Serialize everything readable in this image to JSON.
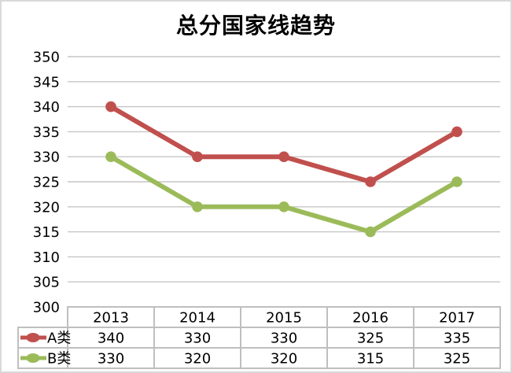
{
  "chart_data": {
    "type": "line",
    "title": "总分国家线趋势",
    "categories": [
      "2013",
      "2014",
      "2015",
      "2016",
      "2017"
    ],
    "series": [
      {
        "name": "A类",
        "values": [
          340,
          330,
          330,
          325,
          335
        ],
        "color": "#C0504D"
      },
      {
        "name": "B类",
        "values": [
          330,
          320,
          320,
          315,
          325
        ],
        "color": "#9BBB59"
      }
    ],
    "ylim": [
      300,
      350
    ],
    "ytick_step": 5,
    "yticks": [
      300,
      305,
      310,
      315,
      320,
      325,
      330,
      335,
      340,
      345,
      350
    ],
    "xlabel": "",
    "ylabel": "",
    "grid": "horizontal",
    "legend_position": "data-table-left",
    "data_table_shown": true,
    "colors": {
      "gridline": "#C6C6C6",
      "table_border": "#BFBFBF",
      "outer_border": "#D9D9D9",
      "text": "#000000",
      "background": "#FFFFFF"
    }
  }
}
